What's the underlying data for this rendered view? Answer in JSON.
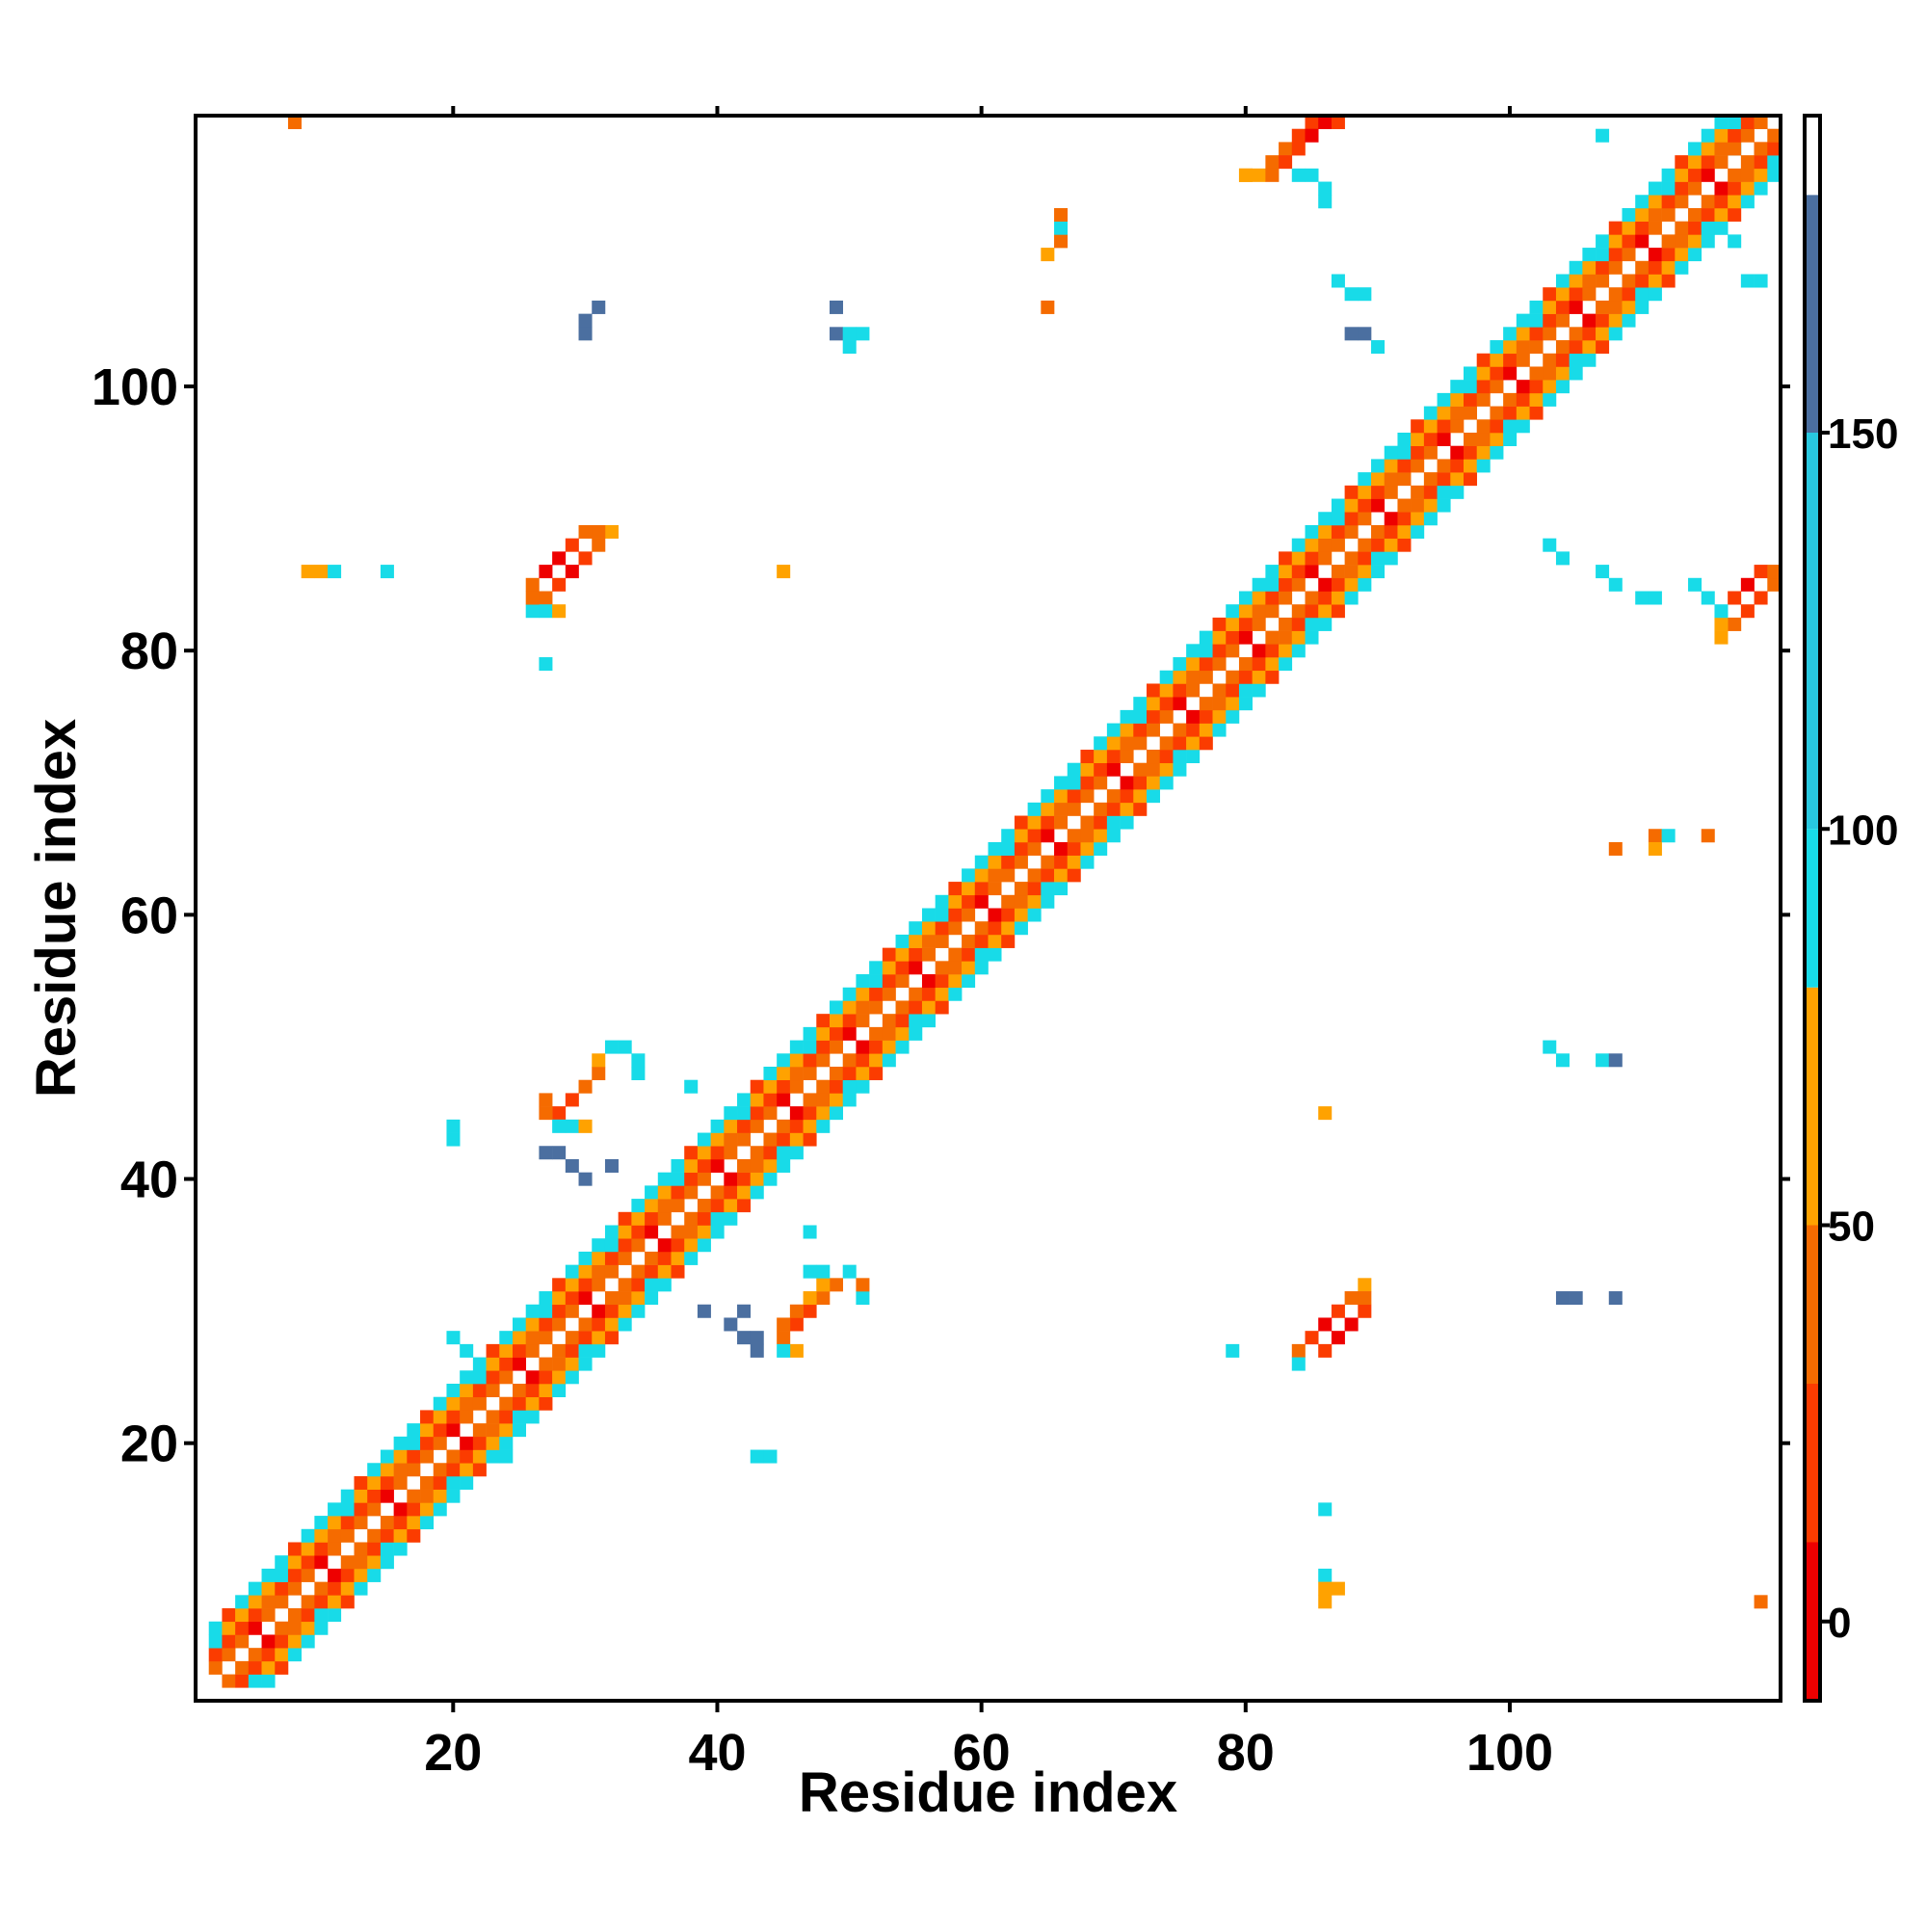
{
  "chart_data": {
    "type": "heatmap",
    "title": "",
    "xlabel": "Residue index",
    "ylabel": "Residue index",
    "xlim": [
      0.5,
      120.5
    ],
    "ylim": [
      0.5,
      120.5
    ],
    "x_ticks": [
      20,
      40,
      60,
      80,
      100
    ],
    "y_ticks": [
      20,
      40,
      60,
      80,
      100
    ],
    "colorbar": {
      "range": [
        -10,
        190
      ],
      "ticks": [
        0,
        50,
        100,
        150
      ],
      "colors": {
        "red": "#ee0000",
        "red_orange": "#fb3c00",
        "orange": "#f56b00",
        "amber": "#ffa200",
        "cyan": "#18dbe8",
        "steel_blue": "#3f9ace",
        "slate": "#4b6fa0",
        "white": "#ffffff"
      },
      "bands": [
        {
          "from": -10,
          "to": 10,
          "color": "#ee0000"
        },
        {
          "from": 10,
          "to": 30,
          "color": "#fb3c00"
        },
        {
          "from": 30,
          "to": 50,
          "color": "#f56b00"
        },
        {
          "from": 50,
          "to": 80,
          "color": "#ffa200"
        },
        {
          "from": 80,
          "to": 100,
          "color": "#18dbe8"
        },
        {
          "from": 100,
          "to": 150,
          "color": "#28c8e0"
        },
        {
          "from": 150,
          "to": 180,
          "color": "#4b6fa0"
        },
        {
          "from": 180,
          "to": 190,
          "color": "#ffffff"
        }
      ]
    },
    "description": "Inter-residue contact map; each colored cell is a residue pair (x, y) colored by value on the colorbar scale.",
    "diagonal": {
      "from": 2,
      "to": 120,
      "offset_pattern": [
        {
          "offset": 1,
          "value": 40
        },
        {
          "offset": 2,
          "value": 15
        },
        {
          "offset": 3,
          "value": 60
        },
        {
          "offset": 4,
          "value": 95
        }
      ]
    },
    "cells": [
      [
        8,
        120,
        40
      ],
      [
        9,
        86,
        60
      ],
      [
        10,
        86,
        60
      ],
      [
        11,
        86,
        95
      ],
      [
        15,
        86,
        95
      ],
      [
        27,
        84,
        40
      ],
      [
        28,
        85,
        15
      ],
      [
        29,
        86,
        0
      ],
      [
        30,
        87,
        15
      ],
      [
        31,
        88,
        40
      ],
      [
        32,
        89,
        60
      ],
      [
        27,
        86,
        0
      ],
      [
        28,
        87,
        0
      ],
      [
        29,
        88,
        15
      ],
      [
        30,
        89,
        40
      ],
      [
        31,
        89,
        40
      ],
      [
        26,
        83,
        95
      ],
      [
        27,
        83,
        95
      ],
      [
        28,
        83,
        60
      ],
      [
        26,
        84,
        40
      ],
      [
        26,
        85,
        40
      ],
      [
        27,
        79,
        95
      ],
      [
        45,
        86,
        60
      ],
      [
        84,
        27,
        40
      ],
      [
        85,
        28,
        15
      ],
      [
        86,
        29,
        0
      ],
      [
        87,
        30,
        15
      ],
      [
        88,
        31,
        40
      ],
      [
        89,
        32,
        60
      ],
      [
        86,
        27,
        15
      ],
      [
        87,
        28,
        0
      ],
      [
        88,
        29,
        0
      ],
      [
        89,
        30,
        15
      ],
      [
        89,
        31,
        40
      ],
      [
        84,
        26,
        95
      ],
      [
        86,
        45,
        60
      ],
      [
        79,
        27,
        95
      ],
      [
        86,
        15,
        95
      ],
      [
        86,
        10,
        95
      ],
      [
        86,
        9,
        60
      ],
      [
        87,
        9,
        60
      ],
      [
        86,
        8,
        60
      ],
      [
        119,
        8,
        40
      ],
      [
        28,
        45,
        15
      ],
      [
        29,
        46,
        15
      ],
      [
        30,
        47,
        40
      ],
      [
        31,
        48,
        40
      ],
      [
        32,
        50,
        95
      ],
      [
        33,
        50,
        95
      ],
      [
        27,
        45,
        40
      ],
      [
        27,
        46,
        40
      ],
      [
        28,
        44,
        95
      ],
      [
        29,
        44,
        95
      ],
      [
        30,
        44,
        60
      ],
      [
        31,
        49,
        60
      ],
      [
        34,
        48,
        95
      ],
      [
        34,
        49,
        95
      ],
      [
        38,
        47,
        95
      ],
      [
        27,
        42,
        150
      ],
      [
        28,
        42,
        150
      ],
      [
        29,
        41,
        150
      ],
      [
        32,
        41,
        150
      ],
      [
        30,
        40,
        150
      ],
      [
        20,
        44,
        95
      ],
      [
        20,
        43,
        95
      ],
      [
        45,
        28,
        40
      ],
      [
        46,
        29,
        15
      ],
      [
        47,
        30,
        15
      ],
      [
        48,
        31,
        40
      ],
      [
        49,
        32,
        40
      ],
      [
        50,
        33,
        95
      ],
      [
        45,
        29,
        40
      ],
      [
        46,
        30,
        40
      ],
      [
        47,
        31,
        60
      ],
      [
        48,
        32,
        60
      ],
      [
        46,
        27,
        60
      ],
      [
        45,
        27,
        95
      ],
      [
        51,
        31,
        95
      ],
      [
        51,
        32,
        40
      ],
      [
        48,
        33,
        95
      ],
      [
        47,
        33,
        95
      ],
      [
        47,
        36,
        95
      ],
      [
        42,
        28,
        150
      ],
      [
        43,
        27,
        150
      ],
      [
        43,
        28,
        150
      ],
      [
        41,
        29,
        150
      ],
      [
        42,
        30,
        150
      ],
      [
        39,
        30,
        150
      ],
      [
        43,
        19,
        95
      ],
      [
        44,
        19,
        95
      ],
      [
        20,
        28,
        95
      ],
      [
        21,
        27,
        95
      ],
      [
        22,
        19,
        95
      ],
      [
        24,
        19,
        95
      ],
      [
        30,
        104,
        150
      ],
      [
        30,
        105,
        150
      ],
      [
        31,
        106,
        150
      ],
      [
        49,
        106,
        150
      ],
      [
        49,
        104,
        150
      ],
      [
        50,
        104,
        95
      ],
      [
        51,
        104,
        95
      ],
      [
        50,
        103,
        95
      ],
      [
        65,
        110,
        60
      ],
      [
        66,
        111,
        40
      ],
      [
        66,
        112,
        95
      ],
      [
        66,
        113,
        40
      ],
      [
        65,
        106,
        40
      ],
      [
        81,
        116,
        60
      ],
      [
        82,
        117,
        40
      ],
      [
        83,
        118,
        40
      ],
      [
        84,
        119,
        15
      ],
      [
        85,
        120,
        15
      ],
      [
        83,
        117,
        15
      ],
      [
        84,
        118,
        15
      ],
      [
        85,
        119,
        0
      ],
      [
        86,
        120,
        0
      ],
      [
        87,
        120,
        15
      ],
      [
        80,
        116,
        60
      ],
      [
        82,
        116,
        40
      ],
      [
        84,
        116,
        95
      ],
      [
        85,
        116,
        95
      ],
      [
        80,
        116,
        60
      ],
      [
        86,
        114,
        95
      ],
      [
        86,
        115,
        95
      ],
      [
        87,
        108,
        95
      ],
      [
        88,
        107,
        95
      ],
      [
        89,
        107,
        95
      ],
      [
        88,
        104,
        150
      ],
      [
        89,
        104,
        150
      ],
      [
        90,
        103,
        95
      ],
      [
        116,
        81,
        60
      ],
      [
        117,
        82,
        40
      ],
      [
        118,
        83,
        15
      ],
      [
        119,
        84,
        15
      ],
      [
        120,
        85,
        40
      ],
      [
        117,
        84,
        15
      ],
      [
        118,
        85,
        0
      ],
      [
        119,
        86,
        15
      ],
      [
        120,
        86,
        40
      ],
      [
        116,
        82,
        60
      ],
      [
        116,
        83,
        95
      ],
      [
        115,
        84,
        95
      ],
      [
        114,
        85,
        95
      ],
      [
        103,
        88,
        95
      ],
      [
        104,
        87,
        95
      ],
      [
        107,
        86,
        95
      ],
      [
        108,
        85,
        95
      ],
      [
        110,
        84,
        95
      ],
      [
        111,
        84,
        95
      ],
      [
        108,
        65,
        40
      ],
      [
        111,
        66,
        40
      ],
      [
        111,
        65,
        60
      ],
      [
        112,
        66,
        95
      ],
      [
        115,
        66,
        40
      ],
      [
        103,
        50,
        95
      ],
      [
        104,
        49,
        95
      ],
      [
        107,
        49,
        95
      ],
      [
        108,
        49,
        150
      ],
      [
        104,
        31,
        150
      ],
      [
        105,
        31,
        150
      ],
      [
        108,
        31,
        150
      ],
      [
        107,
        119,
        95
      ],
      [
        115,
        117,
        60
      ],
      [
        117,
        118,
        95
      ],
      [
        119,
        118,
        15
      ],
      [
        115,
        112,
        95
      ],
      [
        116,
        112,
        95
      ],
      [
        117,
        111,
        95
      ],
      [
        118,
        108,
        95
      ],
      [
        119,
        108,
        95
      ]
    ]
  }
}
